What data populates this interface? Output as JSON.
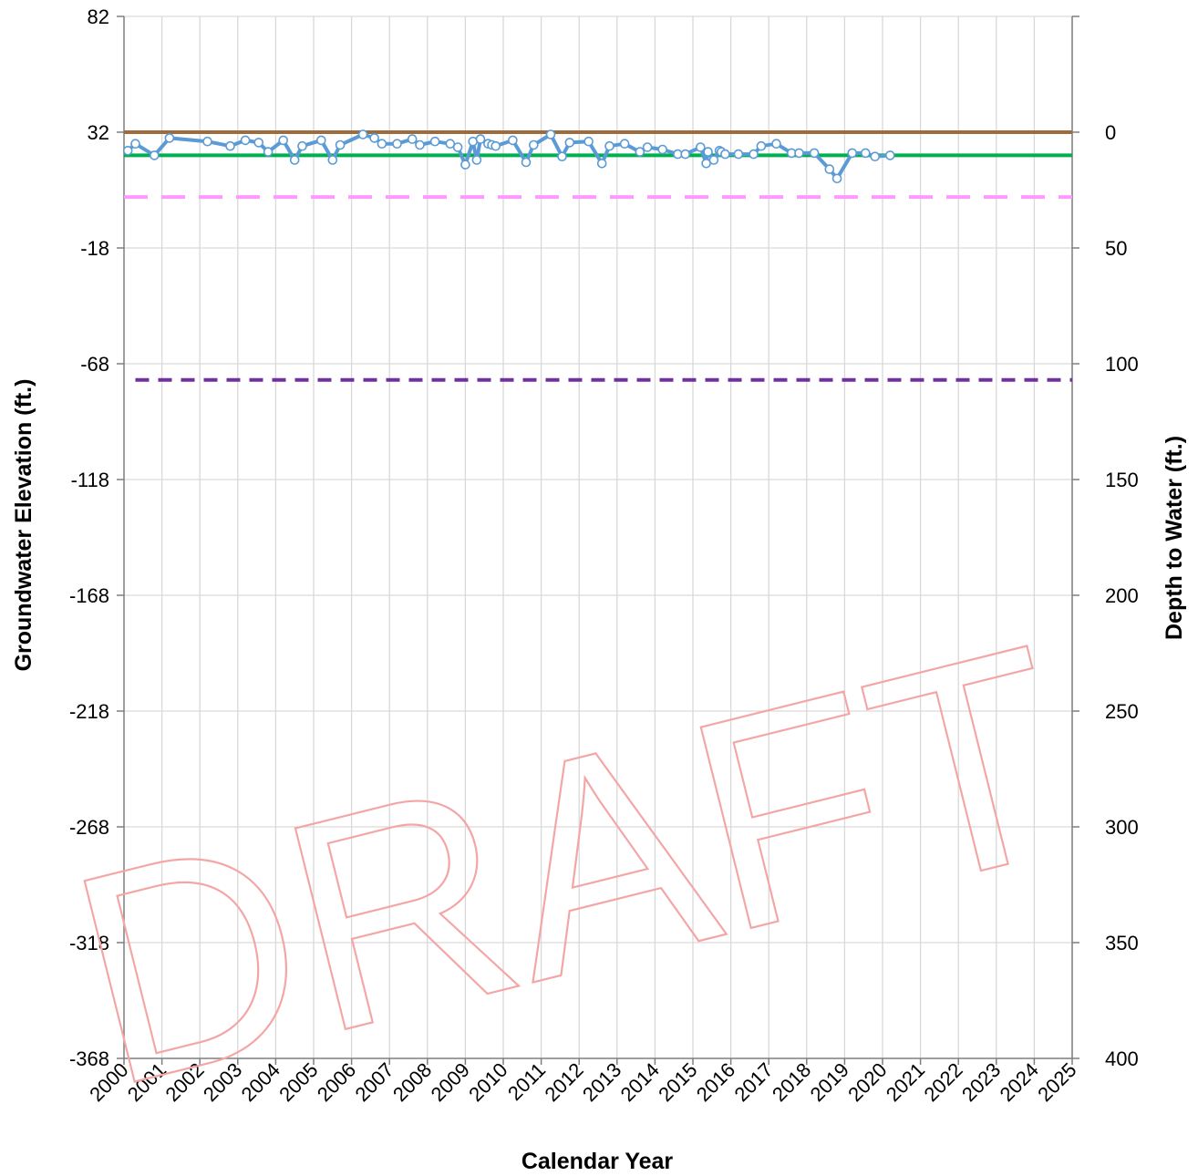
{
  "chart_data": {
    "type": "line",
    "xlabel": "Calendar Year",
    "ylabel": "Groundwater Elevation (ft.)",
    "y2label": "Depth to Water (ft.)",
    "watermark": "DRAFT",
    "xlim": [
      2000,
      2025
    ],
    "x_ticks": [
      "2000",
      "2001",
      "2002",
      "2003",
      "2004",
      "2005",
      "2006",
      "2007",
      "2008",
      "2009",
      "2010",
      "2011",
      "2012",
      "2013",
      "2014",
      "2015",
      "2016",
      "2017",
      "2018",
      "2019",
      "2020",
      "2021",
      "2022",
      "2023",
      "2024",
      "2025"
    ],
    "ylim": [
      -368,
      82
    ],
    "y_ticks": [
      "82",
      "32",
      "-18",
      "-68",
      "-118",
      "-168",
      "-218",
      "-268",
      "-318",
      "-368"
    ],
    "y2lim": [
      400,
      -50
    ],
    "y2_ticks": [
      "0",
      "50",
      "100",
      "150",
      "200",
      "250",
      "300",
      "350",
      "400"
    ],
    "grid": true,
    "series": [
      {
        "color": "#5b9bd5",
        "marker": "circle",
        "points": [
          [
            2000.1,
            24.0
          ],
          [
            2000.3,
            27.0
          ],
          [
            2000.8,
            22.0
          ],
          [
            2001.2,
            29.5
          ],
          [
            2002.2,
            28.0
          ],
          [
            2002.8,
            26.0
          ],
          [
            2003.2,
            28.5
          ],
          [
            2003.55,
            27.5
          ],
          [
            2003.8,
            23.5
          ],
          [
            2004.2,
            28.5
          ],
          [
            2004.5,
            20.0
          ],
          [
            2004.7,
            26.0
          ],
          [
            2005.2,
            28.5
          ],
          [
            2005.5,
            20.0
          ],
          [
            2005.7,
            26.5
          ],
          [
            2006.3,
            31.0
          ],
          [
            2006.6,
            29.5
          ],
          [
            2006.8,
            27.0
          ],
          [
            2007.2,
            27.0
          ],
          [
            2007.6,
            29.0
          ],
          [
            2007.8,
            26.5
          ],
          [
            2008.2,
            28.0
          ],
          [
            2008.6,
            27.0
          ],
          [
            2008.8,
            25.5
          ],
          [
            2009.0,
            18.0
          ],
          [
            2009.2,
            28.0
          ],
          [
            2009.3,
            20.0
          ],
          [
            2009.4,
            29.0
          ],
          [
            2009.6,
            27.0
          ],
          [
            2009.7,
            26.5
          ],
          [
            2009.8,
            26.0
          ],
          [
            2010.25,
            28.5
          ],
          [
            2010.6,
            19.0
          ],
          [
            2010.8,
            26.5
          ],
          [
            2011.25,
            31.0
          ],
          [
            2011.55,
            21.5
          ],
          [
            2011.75,
            27.5
          ],
          [
            2012.25,
            28.0
          ],
          [
            2012.6,
            18.5
          ],
          [
            2012.8,
            26.0
          ],
          [
            2013.2,
            27.0
          ],
          [
            2013.6,
            23.5
          ],
          [
            2013.8,
            25.5
          ],
          [
            2014.2,
            24.5
          ],
          [
            2014.6,
            22.5
          ],
          [
            2014.8,
            22.5
          ],
          [
            2015.2,
            25.5
          ],
          [
            2015.35,
            18.5
          ],
          [
            2015.4,
            23.5
          ],
          [
            2015.55,
            20.0
          ],
          [
            2015.7,
            24.0
          ],
          [
            2015.75,
            23.5
          ],
          [
            2015.85,
            22.5
          ],
          [
            2016.2,
            22.5
          ],
          [
            2016.6,
            22.5
          ],
          [
            2016.8,
            26.0
          ],
          [
            2017.2,
            27.0
          ],
          [
            2017.6,
            23.0
          ],
          [
            2017.8,
            23.0
          ],
          [
            2018.2,
            23.0
          ],
          [
            2018.6,
            16.0
          ],
          [
            2018.8,
            12.0
          ],
          [
            2019.2,
            23.0
          ],
          [
            2019.55,
            23.0
          ],
          [
            2019.8,
            21.5
          ],
          [
            2020.2,
            22.0
          ]
        ]
      },
      {
        "color": "#9e6b3b",
        "constant": 32,
        "xlim": [
          2000,
          2025
        ],
        "style": "solid"
      },
      {
        "color": "#00b050",
        "constant": 22,
        "xlim": [
          2000,
          2025
        ],
        "style": "solid"
      },
      {
        "color": "#ff99ff",
        "constant": 4,
        "xlim": [
          2000,
          2025
        ],
        "style": "long-dash"
      },
      {
        "color": "#7030a0",
        "constant": -75,
        "xlim": [
          2000.3,
          2025
        ],
        "style": "dash"
      }
    ]
  }
}
